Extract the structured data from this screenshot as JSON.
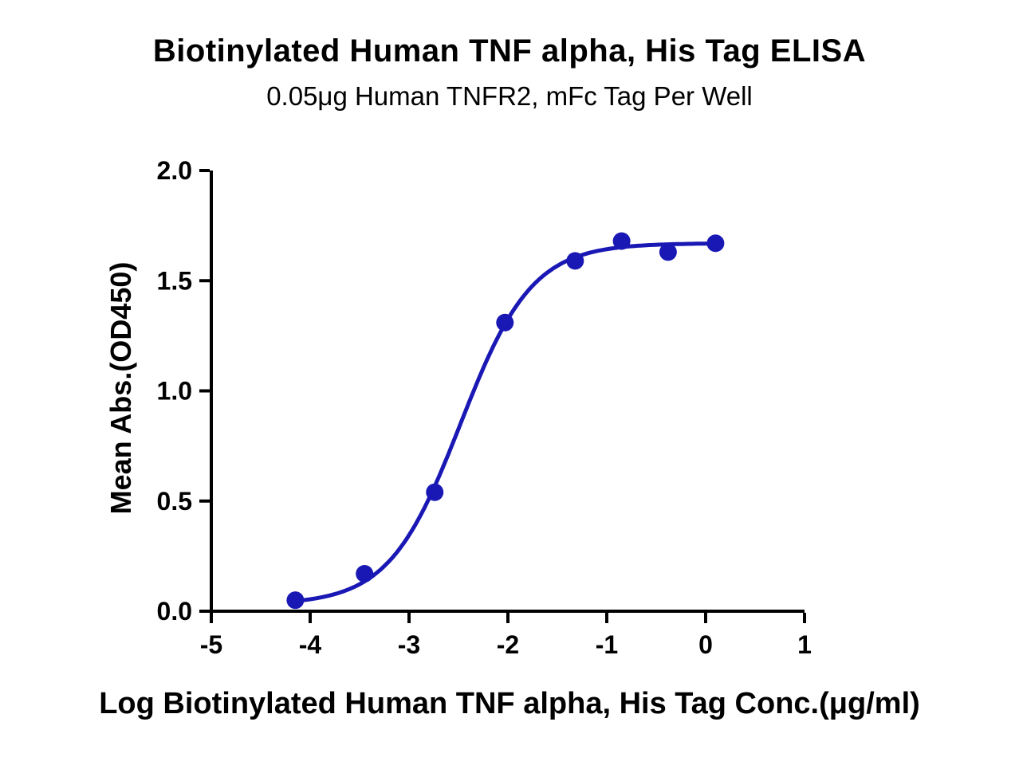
{
  "chart_data": {
    "type": "scatter",
    "title": "Biotinylated Human TNF alpha, His Tag ELISA",
    "subtitle": "0.05μg Human TNFR2, mFc Tag Per Well",
    "xlabel": "Log Biotinylated Human TNF alpha, His Tag Conc.(μg/ml)",
    "ylabel": "Mean Abs.(OD450)",
    "xlim": [
      -5,
      1
    ],
    "ylim": [
      0,
      2
    ],
    "xticks": [
      "-5",
      "-4",
      "-3",
      "-2",
      "-1",
      "0",
      "1"
    ],
    "yticks": [
      "0.0",
      "0.5",
      "1.0",
      "1.5",
      "2.0"
    ],
    "grid": false,
    "legend": false,
    "points": {
      "x": [
        -4.15,
        -3.45,
        -2.74,
        -2.03,
        -1.32,
        -0.85,
        -0.38,
        0.1
      ],
      "y": [
        0.05,
        0.17,
        0.54,
        1.31,
        1.59,
        1.68,
        1.63,
        1.67
      ]
    },
    "fit": {
      "model": "4PL-sigmoid",
      "bottom": 0.03,
      "top": 1.67,
      "logEC50": -2.48,
      "hill": 1.2,
      "range": [
        -4.15,
        0.1
      ]
    },
    "colors": {
      "curve": "#1a18b4",
      "points": "#1a18b4",
      "axis": "#000000",
      "text": "#000000"
    }
  }
}
